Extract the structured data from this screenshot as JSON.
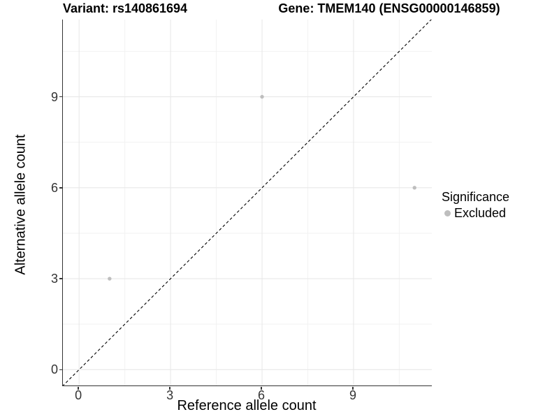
{
  "chart_data": {
    "type": "scatter",
    "title_left": "Variant: rs140861694",
    "title_right": "Gene: TMEM140 (ENSG00000146859)",
    "xlabel": "Reference allele count",
    "ylabel": "Alternative allele count",
    "x_ticks": [
      0,
      3,
      6,
      9
    ],
    "y_ticks": [
      0,
      3,
      6,
      9
    ],
    "xlim": [
      -0.55,
      11.6
    ],
    "ylim": [
      -0.55,
      11.6
    ],
    "grid": "major and minor gridlines, light gray, white panel",
    "diagonal_line": {
      "type": "identity y=x",
      "style": "dashed",
      "color": "#000000"
    },
    "series": [
      {
        "name": "Excluded",
        "color": "#bebebe",
        "points": [
          {
            "x": 1,
            "y": 3
          },
          {
            "x": 6,
            "y": 9
          },
          {
            "x": 11,
            "y": 6
          }
        ]
      }
    ],
    "legend": {
      "title": "Significance",
      "position": "right",
      "entries": [
        {
          "label": "Excluded",
          "color": "#bebebe"
        }
      ]
    }
  },
  "colors": {
    "background": "#ffffff",
    "axis_line": "#333333",
    "tick_label": "#333333",
    "grid_major": "#e8e8e8",
    "grid_minor": "#f2f2f2",
    "point": "#bebebe",
    "diagonal": "#000000"
  }
}
